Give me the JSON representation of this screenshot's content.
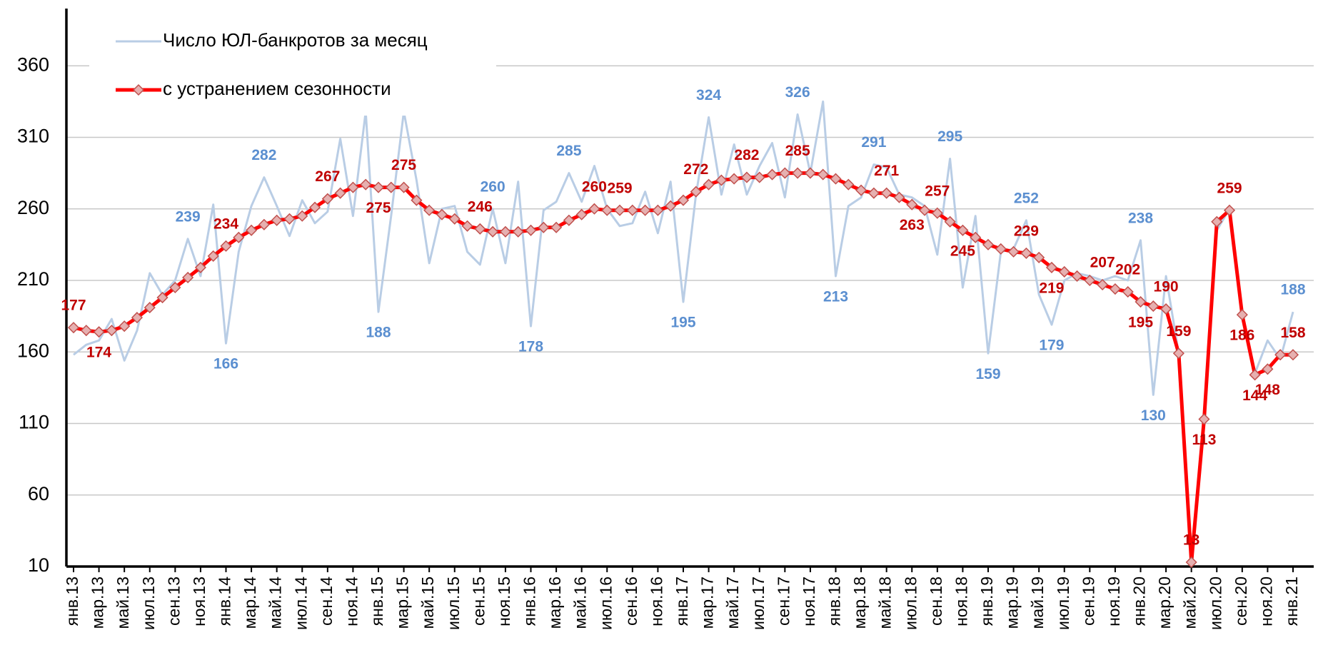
{
  "chart_data": {
    "type": "line",
    "categories": [
      "янв.13",
      null,
      "мар.13",
      null,
      "май.13",
      null,
      "июл.13",
      null,
      "сен.13",
      null,
      "ноя.13",
      null,
      "янв.14",
      null,
      "мар.14",
      null,
      "май.14",
      null,
      "июл.14",
      null,
      "сен.14",
      null,
      "ноя.14",
      null,
      "янв.15",
      null,
      "мар.15",
      null,
      "май.15",
      null,
      "июл.15",
      null,
      "сен.15",
      null,
      "ноя.15",
      null,
      "янв.16",
      null,
      "мар.16",
      null,
      "май.16",
      null,
      "июл.16",
      null,
      "сен.16",
      null,
      "ноя.16",
      null,
      "янв.17",
      null,
      "мар.17",
      null,
      "май.17",
      null,
      "июл.17",
      null,
      "сен.17",
      null,
      "ноя.17",
      null,
      "янв.18",
      null,
      "мар.18",
      null,
      "май.18",
      null,
      "июл.18",
      null,
      "сен.18",
      null,
      "ноя.18",
      null,
      "янв.19",
      null,
      "мар.19",
      null,
      "май.19",
      null,
      "июл.19",
      null,
      "сен.19",
      null,
      "ноя.19",
      null,
      "янв.20",
      null,
      "мар.20",
      null,
      "май.20",
      null,
      "июл.20",
      null,
      "сен.20",
      null,
      "ноя.20",
      null,
      "янв.21"
    ],
    "series": [
      {
        "name": "Число ЮЛ-банкротов за месяц",
        "color": "#b9cde5",
        "label_color": "#5b8fd0",
        "values": [
          158,
          165,
          168,
          183,
          154,
          175,
          215,
          200,
          210,
          239,
          213,
          263,
          166,
          230,
          262,
          282,
          262,
          241,
          266,
          250,
          258,
          309,
          255,
          328,
          188,
          255,
          328,
          280,
          222,
          260,
          262,
          230,
          221,
          260,
          222,
          279,
          178,
          259,
          265,
          285,
          265,
          290,
          260,
          248,
          250,
          272,
          243,
          279,
          195,
          270,
          324,
          270,
          305,
          270,
          290,
          306,
          268,
          326,
          285,
          335,
          213,
          262,
          268,
          291,
          289,
          270,
          268,
          262,
          228,
          295,
          205,
          255,
          159,
          230,
          232,
          252,
          200,
          179,
          210,
          215,
          213,
          210,
          213,
          210,
          238,
          130,
          213,
          159,
          13,
          113,
          245,
          260,
          186,
          145,
          168,
          155,
          188
        ],
        "value_labels": [
          null,
          null,
          null,
          null,
          null,
          null,
          null,
          null,
          null,
          "239",
          null,
          null,
          "166",
          null,
          null,
          "282",
          null,
          null,
          null,
          null,
          null,
          null,
          null,
          null,
          "188",
          null,
          null,
          null,
          null,
          null,
          null,
          null,
          null,
          "260",
          null,
          null,
          "178",
          null,
          null,
          "285",
          null,
          null,
          null,
          null,
          null,
          null,
          null,
          null,
          "195",
          null,
          "324",
          null,
          null,
          null,
          null,
          null,
          null,
          "326",
          null,
          null,
          "213",
          null,
          null,
          "291",
          null,
          null,
          null,
          null,
          null,
          "295",
          null,
          null,
          "159",
          null,
          null,
          "252",
          null,
          "179",
          null,
          null,
          null,
          null,
          null,
          null,
          "238",
          "130",
          null,
          null,
          null,
          null,
          null,
          null,
          null,
          null,
          null,
          null,
          "188"
        ]
      },
      {
        "name": "с устранением сезонности",
        "color": "#ff0000",
        "label_color": "#c00000",
        "marker": "diamond",
        "marker_color": "#e6b0b0",
        "values": [
          177,
          175,
          174,
          175,
          178,
          184,
          191,
          198,
          205,
          212,
          219,
          227,
          234,
          240,
          245,
          249,
          252,
          253,
          255,
          261,
          267,
          271,
          275,
          277,
          275,
          275,
          275,
          266,
          259,
          256,
          253,
          248,
          246,
          244,
          244,
          244,
          245,
          247,
          247,
          252,
          256,
          260,
          259,
          259,
          259,
          259,
          259,
          262,
          266,
          272,
          277,
          280,
          281,
          282,
          282,
          284,
          285,
          285,
          285,
          284,
          281,
          277,
          273,
          271,
          271,
          268,
          263,
          259,
          257,
          251,
          245,
          240,
          235,
          232,
          230,
          229,
          226,
          219,
          216,
          213,
          210,
          207,
          204,
          202,
          195,
          192,
          190,
          159,
          13,
          113,
          251,
          259,
          186,
          144,
          148,
          158,
          158
        ],
        "value_labels": [
          "177",
          null,
          "174",
          null,
          null,
          null,
          null,
          null,
          null,
          null,
          null,
          null,
          "234",
          null,
          null,
          null,
          null,
          null,
          null,
          null,
          "267",
          null,
          null,
          null,
          "275",
          null,
          "275",
          null,
          null,
          null,
          null,
          null,
          "246",
          null,
          null,
          null,
          null,
          null,
          null,
          null,
          null,
          "260",
          null,
          "259",
          null,
          null,
          null,
          null,
          null,
          "272",
          null,
          null,
          null,
          "282",
          null,
          null,
          null,
          "285",
          null,
          null,
          null,
          null,
          null,
          null,
          "271",
          null,
          "263",
          null,
          "257",
          null,
          "245",
          null,
          null,
          null,
          null,
          "229",
          null,
          "219",
          null,
          null,
          null,
          "207",
          null,
          "202",
          "195",
          null,
          "190",
          "159",
          "13",
          "113",
          null,
          "259",
          "186",
          "144",
          "148",
          null,
          "158"
        ]
      }
    ],
    "ylim": [
      10,
      400
    ],
    "yticks": [
      10,
      60,
      110,
      160,
      210,
      260,
      310,
      360
    ],
    "grid": true,
    "legend": "upper left"
  }
}
